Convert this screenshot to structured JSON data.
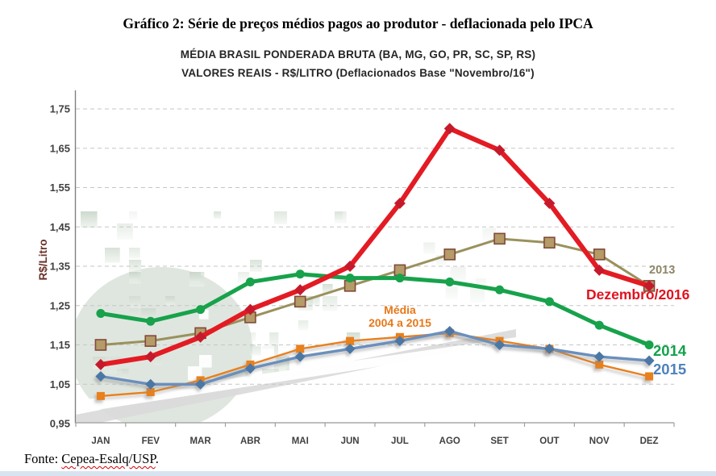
{
  "page": {
    "title": "Gráfico 2: Série de preços médios pagos ao produtor - deflacionada pelo IPCA",
    "source_prefix": "Fonte: ",
    "source_name": "Cepea-Esalq/USP",
    "source_suffix": "."
  },
  "chart_data": {
    "type": "line",
    "title": "MÉDIA BRASIL PONDERADA BRUTA (BA, MG, GO, PR, SC, SP, RS)",
    "subtitle": "VALORES REAIS - R$/LITRO (Deflacionados Base \"Novembro/16\")",
    "ylabel": "R$/Litro",
    "ylim": [
      0.95,
      1.75
    ],
    "ytick_step": 0.1,
    "ytick_labels": [
      "0,95",
      "1,05",
      "1,15",
      "1,25",
      "1,35",
      "1,45",
      "1,55",
      "1,65",
      "1,75"
    ],
    "grid": "horizontal-dashed",
    "legend_position": "end-of-line labels",
    "categories": [
      "JAN",
      "FEV",
      "MAR",
      "ABR",
      "MAI",
      "JUN",
      "JUL",
      "AGO",
      "SET",
      "OUT",
      "NOV",
      "DEZ"
    ],
    "series": [
      {
        "name": "Média 2004 a 2015",
        "color": "#E8801F",
        "marker": "square",
        "values": [
          1.02,
          1.03,
          1.06,
          1.1,
          1.14,
          1.16,
          1.17,
          1.18,
          1.16,
          1.14,
          1.1,
          1.07
        ]
      },
      {
        "name": "2015",
        "color": "#6A8FBC",
        "marker": "diamond",
        "values": [
          1.07,
          1.05,
          1.05,
          1.09,
          1.12,
          1.14,
          1.16,
          1.185,
          1.15,
          1.14,
          1.12,
          1.11
        ]
      },
      {
        "name": "2013",
        "color": "#9A915D",
        "marker": "square",
        "values": [
          1.15,
          1.16,
          1.18,
          1.22,
          1.26,
          1.3,
          1.34,
          1.38,
          1.42,
          1.41,
          1.38,
          1.3
        ]
      },
      {
        "name": "2014",
        "color": "#17A24B",
        "marker": "circle",
        "values": [
          1.23,
          1.21,
          1.24,
          1.31,
          1.33,
          1.32,
          1.32,
          1.31,
          1.29,
          1.26,
          1.2,
          1.15
        ]
      },
      {
        "name": "Dezembro/2016",
        "color": "#E31B23",
        "marker": "diamond",
        "values": [
          1.1,
          1.12,
          1.17,
          1.24,
          1.29,
          1.35,
          1.51,
          1.7,
          1.645,
          1.51,
          1.34,
          1.3
        ]
      }
    ],
    "annotations": [
      {
        "text": "2013",
        "color": "#8D8566"
      },
      {
        "text": "Dezembro/2016",
        "color": "#E0131F"
      },
      {
        "text": "2014",
        "color": "#12A24B"
      },
      {
        "text": "2015",
        "color": "#4E81BD"
      },
      {
        "text": "Média",
        "color": "#E87817"
      },
      {
        "text": "2004 a 2015",
        "color": "#E87817"
      }
    ]
  }
}
